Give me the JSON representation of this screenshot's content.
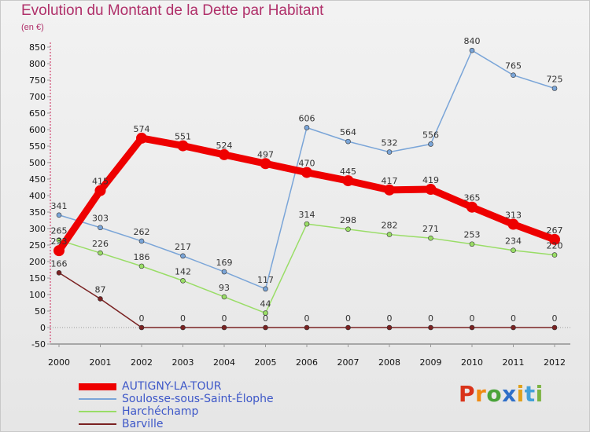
{
  "title": "Evolution du Montant de la Dette par Habitant",
  "subtitle": "(en €)",
  "logo": "Proxiti",
  "chart_data": {
    "type": "line",
    "categories": [
      "2000",
      "2001",
      "2002",
      "2003",
      "2004",
      "2005",
      "2006",
      "2007",
      "2008",
      "2009",
      "2010",
      "2011",
      "2012"
    ],
    "ylim": [
      -50,
      850
    ],
    "yticks": [
      -50,
      0,
      50,
      100,
      150,
      200,
      250,
      300,
      350,
      400,
      450,
      500,
      550,
      600,
      650,
      700,
      750,
      800,
      850
    ],
    "grid": false,
    "legend_position": "bottom-left",
    "series": [
      {
        "name": "AUTIGNY-LA-TOUR",
        "color": "#ee0000",
        "values": [
          233,
          415,
          574,
          551,
          524,
          497,
          470,
          445,
          417,
          419,
          365,
          313,
          267
        ],
        "labels": [
          "233",
          "415",
          "574",
          "551",
          "524",
          "497",
          "470",
          "445",
          "417",
          "419",
          "365",
          "313",
          "267"
        ]
      },
      {
        "name": "Soulosse-sous-Saint-Élophe",
        "color": "#7aa5d8",
        "values": [
          341,
          303,
          262,
          217,
          169,
          117,
          606,
          564,
          532,
          556,
          840,
          765,
          725
        ],
        "labels": [
          "341",
          "303",
          "262",
          "217",
          "169",
          "117",
          "606",
          "564",
          "532",
          "556",
          "840",
          "765",
          "725"
        ]
      },
      {
        "name": "Harchéchamp",
        "color": "#99dd66",
        "values": [
          265,
          226,
          186,
          142,
          93,
          44,
          314,
          298,
          282,
          271,
          253,
          234,
          220
        ],
        "labels": [
          "265",
          "226",
          "186",
          "142",
          "93",
          "44",
          "314",
          "298",
          "282",
          "271",
          "253",
          "234",
          "220"
        ]
      },
      {
        "name": "Barville",
        "color": "#7a2222",
        "values": [
          166,
          87,
          0,
          0,
          0,
          0,
          0,
          0,
          0,
          0,
          0,
          0,
          0
        ],
        "labels": [
          "166",
          "87",
          "0",
          "0",
          "0",
          "0",
          "0",
          "0",
          "0",
          "0",
          "0",
          "0",
          "0"
        ]
      }
    ]
  }
}
